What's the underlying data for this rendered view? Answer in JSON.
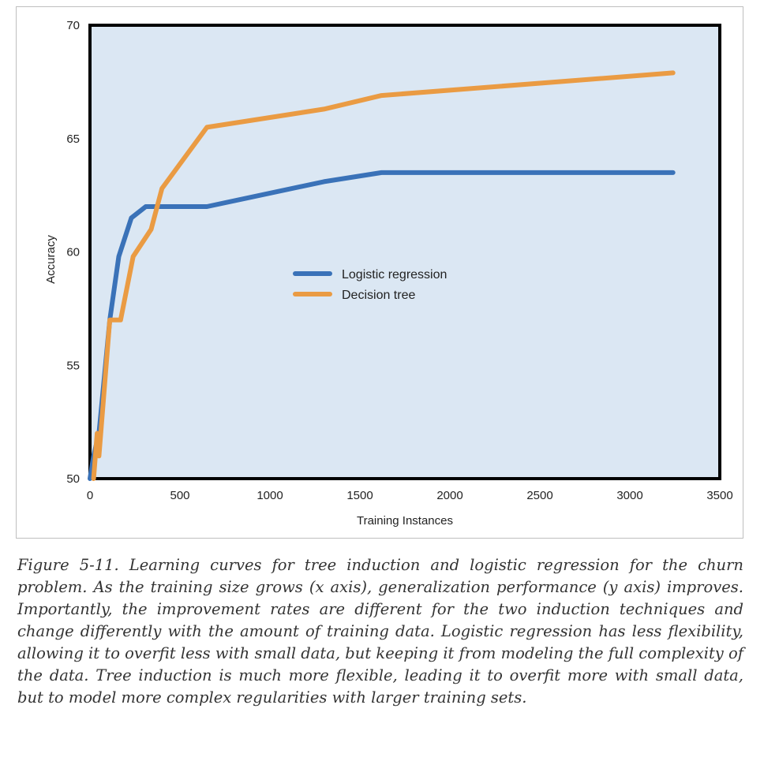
{
  "chart_data": {
    "type": "line",
    "title": "",
    "xlabel": "Training Instances",
    "ylabel": "Accuracy",
    "xlim": [
      0,
      3500
    ],
    "ylim": [
      50,
      70
    ],
    "x_ticks": [
      "0",
      "500",
      "1000",
      "1500",
      "2000",
      "2500",
      "3000",
      "3500"
    ],
    "y_ticks": [
      "50",
      "55",
      "60",
      "65",
      "70"
    ],
    "grid": false,
    "legend_position": "center",
    "background_color": "#dbe7f3",
    "series": [
      {
        "name": "Logistic regression",
        "color": "#3a72b8",
        "x": [
          0,
          20,
          50,
          110,
          160,
          230,
          310,
          400,
          650,
          1300,
          1620,
          3240
        ],
        "y": [
          50,
          51,
          52,
          57,
          59.8,
          61.5,
          62,
          62,
          62,
          63.1,
          63.5,
          63.5
        ]
      },
      {
        "name": "Decision tree",
        "color": "#ea9b43",
        "x": [
          20,
          40,
          50,
          110,
          170,
          240,
          340,
          400,
          650,
          1300,
          1620,
          3240
        ],
        "y": [
          50,
          52,
          51,
          57,
          57,
          59.8,
          61,
          62.8,
          65.5,
          66.3,
          66.9,
          67.9
        ]
      }
    ]
  },
  "caption": "Figure 5-11. Learning curves for tree induction and logistic regression for the churn problem. As the training size grows (x axis), generalization performance (y axis) improves. Importantly, the improvement rates are different for the two induction techniques and change differently with the amount of training data. Logistic regression has less flexibility, allowing it to overfit less with small data, but keeping it from modeling the full complexity of the data. Tree induction is much more flexible, leading it to overfit more with small data, but to model more complex regularities with larger training sets."
}
